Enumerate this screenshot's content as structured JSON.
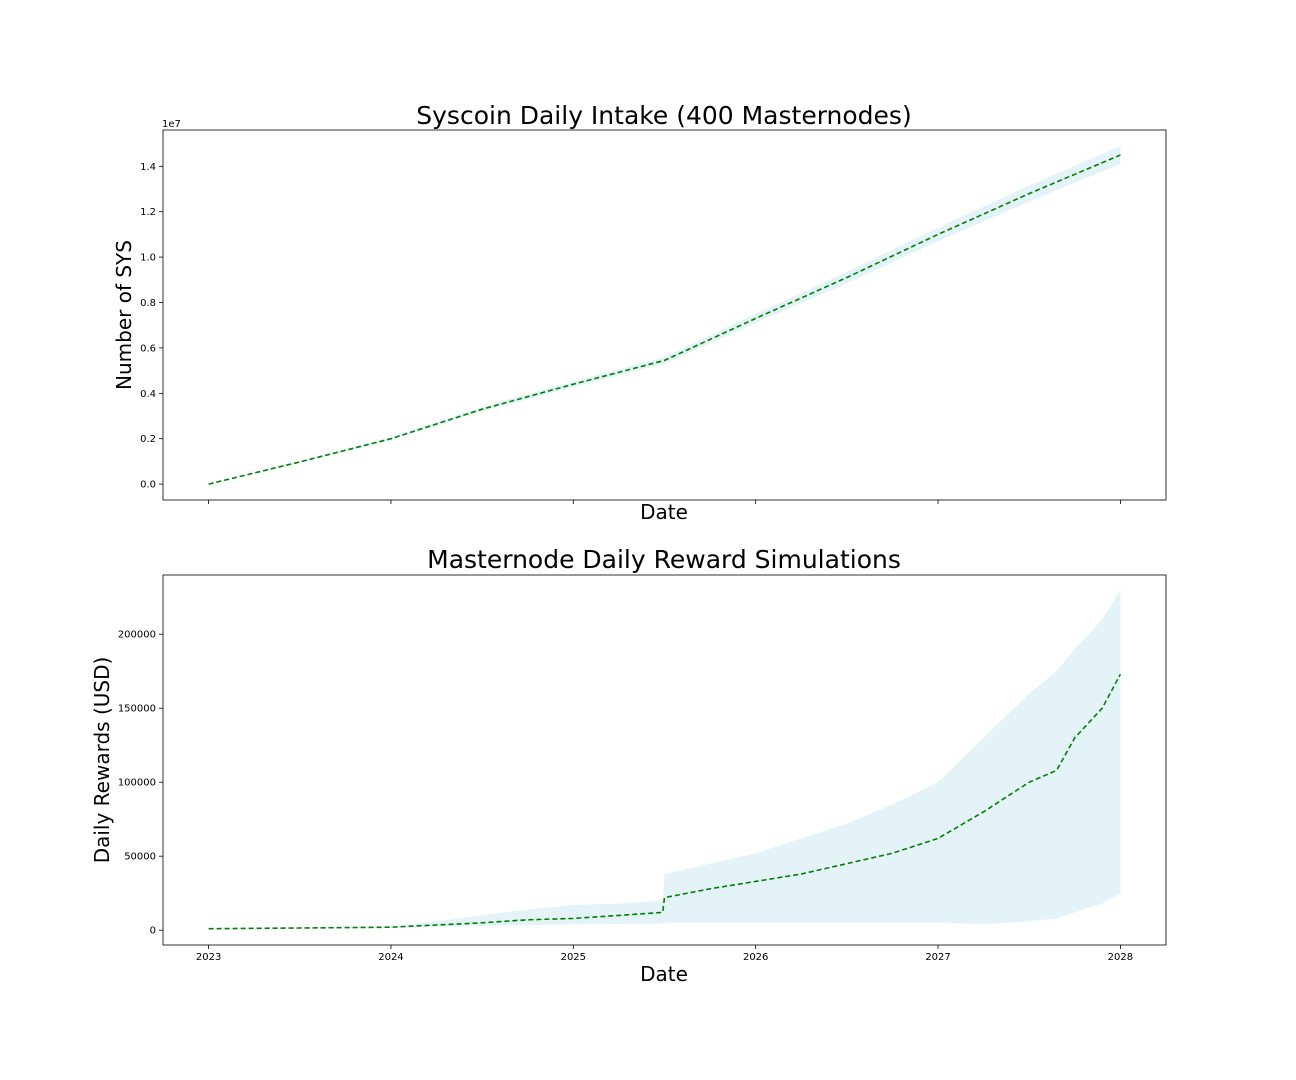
{
  "figure": {
    "background": "#ffffff"
  },
  "chart_data": [
    {
      "type": "line",
      "title": "Syscoin Daily Intake (400 Masternodes)",
      "xlabel": "Date",
      "ylabel": "Number of SYS",
      "y_offset_label": "1e7",
      "xlim": [
        2022.75,
        2028.25
      ],
      "ylim": [
        -0.07,
        1.56
      ],
      "y_scale_factor": 10000000,
      "x_ticks": [
        2023,
        2024,
        2025,
        2026,
        2027,
        2028
      ],
      "x_tick_labels_visible": false,
      "y_ticks": [
        0.0,
        0.2,
        0.4,
        0.6,
        0.8,
        1.0,
        1.2,
        1.4
      ],
      "y_tick_labels": [
        "0.0",
        "0.2",
        "0.4",
        "0.6",
        "0.8",
        "1.0",
        "1.2",
        "1.4"
      ],
      "grid": false,
      "series": [
        {
          "style": "dashed",
          "color": "#008000",
          "x": [
            2023.0,
            2023.5,
            2024.0,
            2024.5,
            2025.0,
            2025.5,
            2026.0,
            2026.5,
            2027.0,
            2027.5,
            2028.0
          ],
          "y": [
            0.0,
            0.098,
            0.2,
            0.33,
            0.44,
            0.545,
            0.73,
            0.91,
            1.1,
            1.28,
            1.45
          ],
          "band_lower": [
            0.0,
            0.094,
            0.193,
            0.32,
            0.428,
            0.53,
            0.71,
            0.885,
            1.07,
            1.245,
            1.41
          ],
          "band_upper": [
            0.0,
            0.102,
            0.207,
            0.34,
            0.452,
            0.56,
            0.75,
            0.935,
            1.13,
            1.315,
            1.49
          ],
          "band_color": "#cdeaf0"
        }
      ]
    },
    {
      "type": "line",
      "title": "Masternode Daily Reward Simulations",
      "xlabel": "Date",
      "ylabel": "Daily Rewards (USD)",
      "xlim": [
        2022.75,
        2028.25
      ],
      "ylim": [
        -10000,
        240000
      ],
      "x_ticks": [
        2023,
        2024,
        2025,
        2026,
        2027,
        2028
      ],
      "x_tick_labels": [
        "2023",
        "2024",
        "2025",
        "2026",
        "2027",
        "2028"
      ],
      "y_ticks": [
        0,
        50000,
        100000,
        150000,
        200000
      ],
      "y_tick_labels": [
        "0",
        "50000",
        "100000",
        "150000",
        "200000"
      ],
      "grid": false,
      "series": [
        {
          "style": "dashed",
          "color": "#008000",
          "x": [
            2023.0,
            2023.5,
            2024.0,
            2024.25,
            2024.5,
            2024.75,
            2025.0,
            2025.25,
            2025.49,
            2025.5,
            2025.75,
            2026.0,
            2026.25,
            2026.5,
            2026.75,
            2027.0,
            2027.25,
            2027.5,
            2027.65,
            2027.75,
            2027.9,
            2028.0
          ],
          "y": [
            1000,
            1500,
            2000,
            3500,
            5000,
            7000,
            8000,
            10000,
            12000,
            22000,
            28000,
            33000,
            38000,
            45000,
            52000,
            62000,
            80000,
            100000,
            108000,
            130000,
            150000,
            173000
          ],
          "band_lower": [
            1000,
            1300,
            1600,
            2200,
            3000,
            3500,
            4000,
            4200,
            4500,
            5000,
            5000,
            5000,
            5000,
            5000,
            5000,
            5000,
            4000,
            6000,
            8000,
            12000,
            18000,
            25000
          ],
          "band_upper": [
            1000,
            1800,
            2500,
            6000,
            10000,
            14000,
            17000,
            18000,
            20000,
            38000,
            45000,
            52000,
            62000,
            72000,
            85000,
            100000,
            130000,
            160000,
            175000,
            190000,
            210000,
            230000
          ],
          "band_color": "#cdeaf0"
        }
      ]
    }
  ]
}
